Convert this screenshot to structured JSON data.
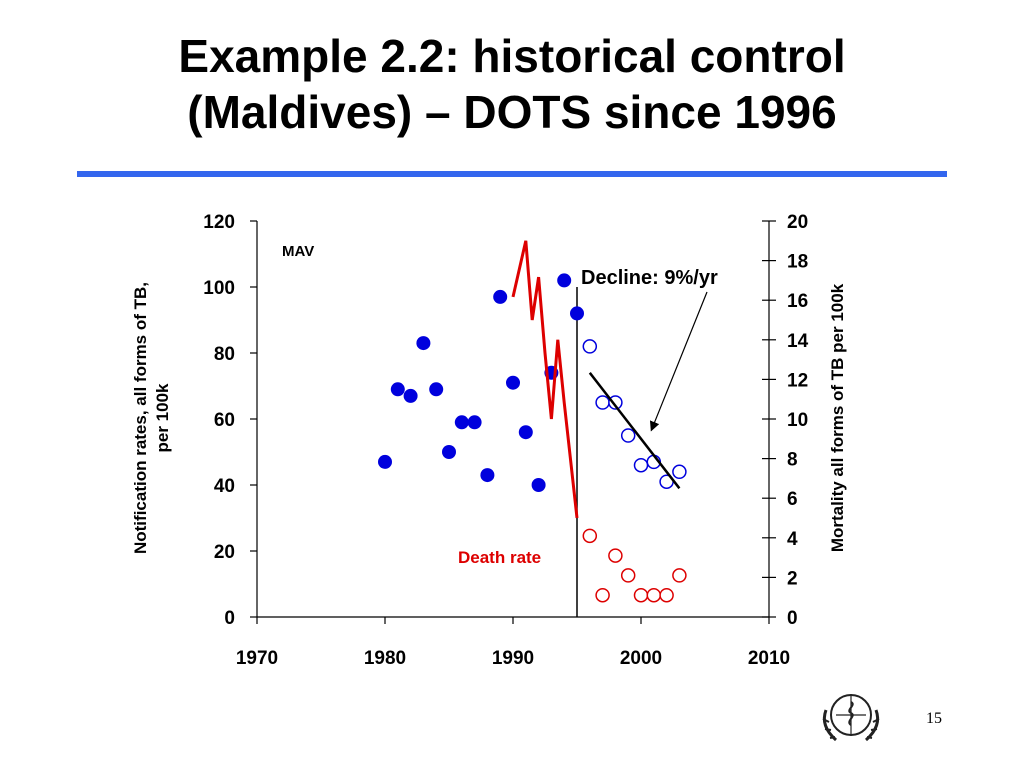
{
  "slide": {
    "title_line1": "Example 2.2: historical control",
    "title_line2": "(Maldives) – DOTS since 1996",
    "page_number": "15",
    "accent_color": "#3366ee",
    "logo": "who-emblem-icon"
  },
  "chart_data": {
    "type": "scatter",
    "country_code": "MAV",
    "xlim": [
      1970,
      2010
    ],
    "x_ticks": [
      1970,
      1980,
      1990,
      2000,
      2010
    ],
    "ylim_left": [
      0,
      120
    ],
    "y_ticks_left": [
      0,
      20,
      40,
      60,
      80,
      100,
      120
    ],
    "ylim_right": [
      0,
      20
    ],
    "y_ticks_right": [
      0,
      2,
      4,
      6,
      8,
      10,
      12,
      14,
      16,
      18,
      20
    ],
    "ylabel_left": "Notification rates, all forms of TB, per 100k",
    "ylabel_right": "Mortality all forms of TB per 100k",
    "dots_start_year": 1995,
    "series": [
      {
        "role": "notification-before-dots",
        "axis": "left",
        "style": "filled-circle",
        "color": "#0000dd",
        "points": [
          [
            1980,
            47
          ],
          [
            1981,
            69
          ],
          [
            1982,
            67
          ],
          [
            1983,
            83
          ],
          [
            1984,
            69
          ],
          [
            1985,
            50
          ],
          [
            1986,
            59
          ],
          [
            1987,
            59
          ],
          [
            1988,
            43
          ],
          [
            1989,
            97
          ],
          [
            1990,
            71
          ],
          [
            1991,
            56
          ],
          [
            1992,
            40
          ],
          [
            1993,
            74
          ],
          [
            1994,
            102
          ],
          [
            1995,
            92
          ]
        ]
      },
      {
        "role": "notification-after-dots",
        "axis": "left",
        "style": "open-circle",
        "color": "#0000dd",
        "points": [
          [
            1996,
            82
          ],
          [
            1997,
            65
          ],
          [
            1998,
            65
          ],
          [
            1999,
            55
          ],
          [
            2000,
            46
          ],
          [
            2001,
            47
          ],
          [
            2002,
            41
          ],
          [
            2003,
            44
          ]
        ]
      },
      {
        "role": "trend-line",
        "axis": "left",
        "style": "line",
        "color": "#000000",
        "points": [
          [
            1996,
            74
          ],
          [
            2003,
            39
          ]
        ]
      },
      {
        "role": "death-rate-line",
        "axis": "left",
        "style": "line",
        "color": "#dd0000",
        "points": [
          [
            1990,
            97
          ],
          [
            1991,
            114
          ],
          [
            1991.5,
            90
          ],
          [
            1992,
            103
          ],
          [
            1992.5,
            80
          ],
          [
            1993,
            60
          ],
          [
            1993.5,
            84
          ],
          [
            1994,
            65
          ],
          [
            1995,
            30
          ]
        ]
      },
      {
        "role": "death-rate-points",
        "axis": "right",
        "style": "open-circle",
        "color": "#dd0000",
        "points": [
          [
            1996,
            4.1
          ],
          [
            1997,
            1.1
          ],
          [
            1998,
            3.1
          ],
          [
            1999,
            2.1
          ],
          [
            2000,
            1.1
          ],
          [
            2001,
            1.1
          ],
          [
            2002,
            1.1
          ],
          [
            2003,
            2.1
          ]
        ]
      }
    ],
    "annotations": [
      {
        "text": "Decline: 9%/yr",
        "color": "#000000",
        "arrow_to": [
          2000.8,
          56.5
        ]
      },
      {
        "text": "Death rate",
        "color": "#dd0000"
      }
    ]
  }
}
